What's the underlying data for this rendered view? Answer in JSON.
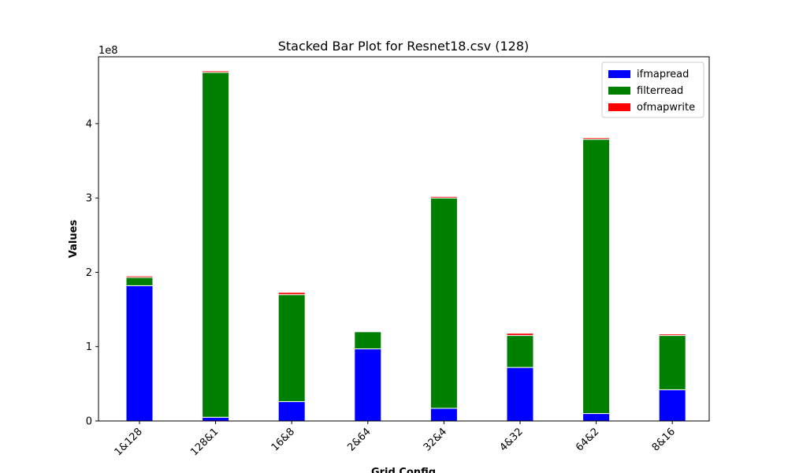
{
  "chart_data": {
    "type": "bar",
    "stacked": true,
    "title": "Stacked Bar Plot for Resnet18.csv (128)",
    "xlabel": "Grid Config",
    "ylabel": "Values",
    "y_scale_label": "1e8",
    "ylim": [
      0,
      4.9
    ],
    "yticks": [
      0,
      1,
      2,
      3,
      4
    ],
    "categories": [
      "1&128",
      "128&1",
      "16&8",
      "2&64",
      "32&4",
      "4&32",
      "64&2",
      "8&16"
    ],
    "series": [
      {
        "name": "ifmapread",
        "color": "#0000ff",
        "values": [
          1.82,
          0.05,
          0.26,
          0.97,
          0.17,
          0.72,
          0.1,
          0.42
        ]
      },
      {
        "name": "filterread",
        "color": "#008000",
        "values": [
          0.11,
          4.64,
          1.44,
          0.23,
          2.83,
          0.43,
          3.69,
          0.73
        ]
      },
      {
        "name": "ofmapwrite",
        "color": "#ff0000",
        "values": [
          0.02,
          0.02,
          0.03,
          0.0,
          0.02,
          0.03,
          0.02,
          0.02
        ]
      }
    ],
    "legend_position": "top-right",
    "grid": false
  }
}
